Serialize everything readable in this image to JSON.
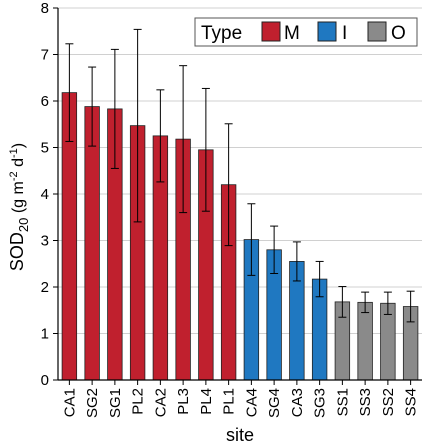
{
  "chart_data": {
    "type": "bar",
    "xlabel": "site",
    "ylabel_parts": {
      "base": "SOD",
      "base_sub": "20",
      "units_open": " (g m",
      "units_exp1": "-2",
      "units_mid": " d",
      "units_exp2": "-1",
      "units_close": ")"
    },
    "ylim": [
      0,
      8
    ],
    "yticks": [
      0,
      1,
      2,
      3,
      4,
      5,
      6,
      7,
      8
    ],
    "grid": true,
    "legend": {
      "title": "Type",
      "placement": "top-right",
      "items": [
        {
          "label": "M",
          "color": "#c0202e"
        },
        {
          "label": "I",
          "color": "#1f78c1"
        },
        {
          "label": "O",
          "color": "#8a8a8a"
        }
      ]
    },
    "categories": [
      "CA1",
      "SG2",
      "SG1",
      "PL2",
      "CA2",
      "PL3",
      "PL4",
      "PL1",
      "CA4",
      "SG4",
      "CA3",
      "SG3",
      "SS1",
      "SS3",
      "SS2",
      "SS4"
    ],
    "values": [
      6.18,
      5.88,
      5.83,
      5.47,
      5.25,
      5.18,
      4.95,
      4.2,
      3.02,
      2.8,
      2.55,
      2.17,
      1.68,
      1.67,
      1.65,
      1.58
    ],
    "errors": [
      1.05,
      0.85,
      1.28,
      2.07,
      0.99,
      1.58,
      1.32,
      1.31,
      0.77,
      0.51,
      0.42,
      0.38,
      0.33,
      0.22,
      0.24,
      0.33
    ],
    "types": [
      "M",
      "M",
      "M",
      "M",
      "M",
      "M",
      "M",
      "M",
      "I",
      "I",
      "I",
      "I",
      "O",
      "O",
      "O",
      "O"
    ]
  }
}
